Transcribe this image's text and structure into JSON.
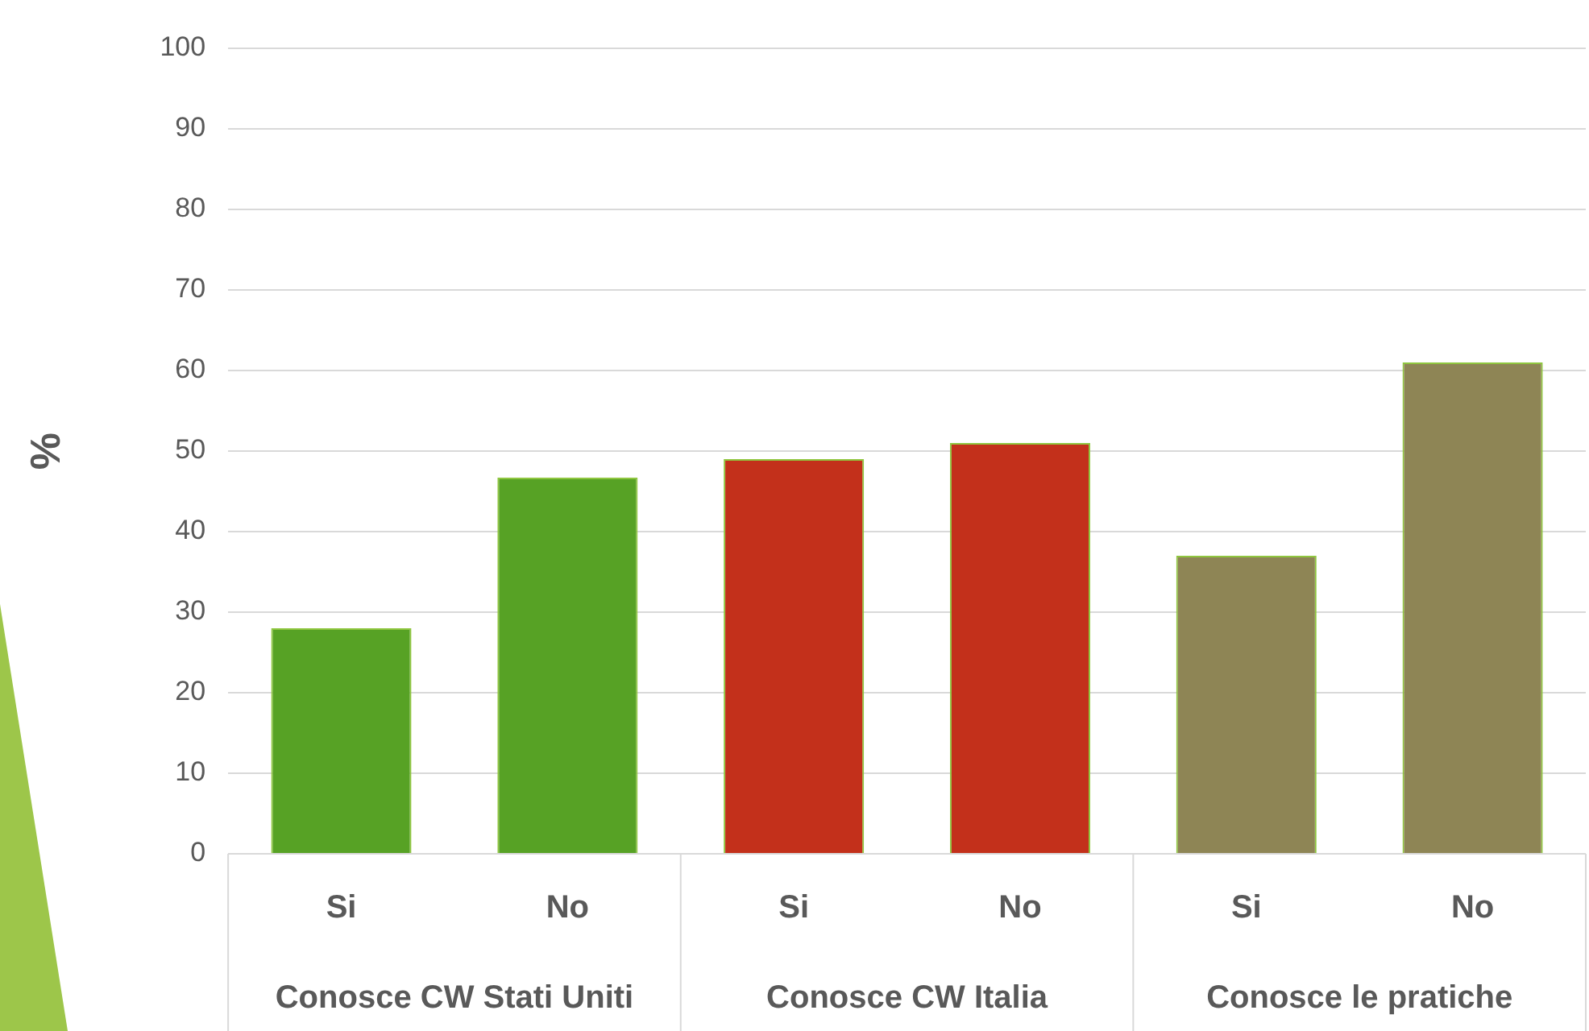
{
  "chart_data": {
    "type": "bar",
    "ylabel": "%",
    "categories": [
      "Si",
      "No",
      "Si",
      "No",
      "Si",
      "No"
    ],
    "values": [
      28,
      46.7,
      49,
      51,
      37,
      61
    ],
    "colors": [
      "#57a225",
      "#57a225",
      "#c3301b",
      "#c3301b",
      "#8e8555",
      "#8e8555"
    ],
    "ylim": [
      0,
      100
    ],
    "yticks": [
      0,
      10,
      20,
      30,
      40,
      50,
      60,
      70,
      80,
      90,
      100
    ],
    "grid": "y",
    "annotations": [
      "Conosce CW Stati Uniti",
      "Conosce CW Italia",
      "Conosce le pratiche"
    ]
  }
}
